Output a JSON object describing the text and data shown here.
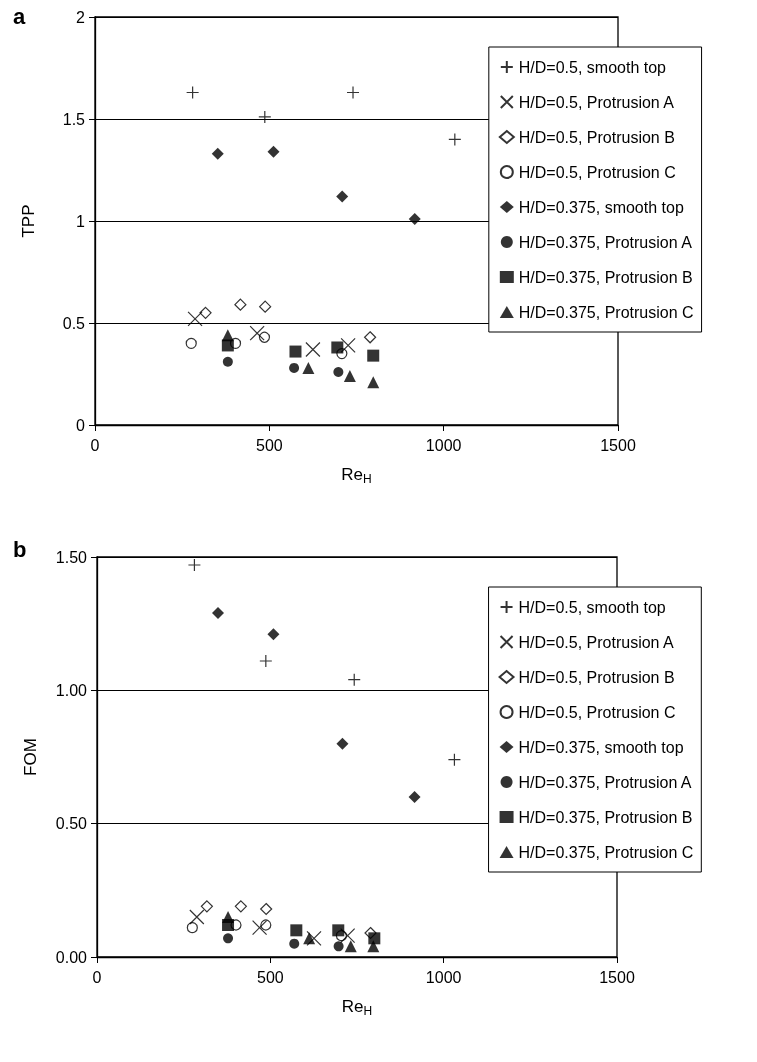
{
  "chart_data": [
    {
      "type": "scatter",
      "title": "a",
      "xlabel": "Re$_{H}$",
      "ylabel": "TPP",
      "xlim": [
        0,
        1500
      ],
      "xticks": [
        0,
        500,
        1000,
        1500
      ],
      "ylim": [
        0,
        2
      ],
      "yticks": [
        0,
        0.5,
        1,
        1.5,
        2
      ],
      "grid": "y",
      "legend": "right",
      "series": [
        {
          "name": "H/D=0.5, smooth top",
          "color": "#000000",
          "marker": "plus",
          "x": [
            280,
            487,
            740,
            1032
          ],
          "values": [
            1.63,
            1.51,
            1.63,
            1.4
          ]
        },
        {
          "name": "H/D=0.5, Protrusion A",
          "color": "#000000",
          "marker": "cross",
          "x": [
            287,
            465,
            625,
            726
          ],
          "values": [
            0.52,
            0.45,
            0.37,
            0.39
          ]
        },
        {
          "name": "H/D=0.5, Protrusion B",
          "color": "#000000",
          "marker": "diamond-open",
          "x": [
            317,
            417,
            488,
            789
          ],
          "values": [
            0.55,
            0.59,
            0.58,
            0.43
          ]
        },
        {
          "name": "H/D=0.5, Protrusion C",
          "color": "#000000",
          "marker": "circle-open",
          "x": [
            276,
            403,
            486,
            708
          ],
          "values": [
            0.4,
            0.4,
            0.43,
            0.35
          ]
        },
        {
          "name": "H/D=0.375, smooth top",
          "color": "#000000",
          "marker": "diamond",
          "x": [
            352,
            512,
            709,
            917
          ],
          "values": [
            1.33,
            1.34,
            1.12,
            1.01
          ]
        },
        {
          "name": "H/D=0.375, Protrusion A",
          "color": "#000000",
          "marker": "circle",
          "x": [
            381,
            571,
            698
          ],
          "values": [
            0.31,
            0.28,
            0.26
          ]
        },
        {
          "name": "H/D=0.375, Protrusion B",
          "color": "#000000",
          "marker": "square",
          "x": [
            381,
            575,
            695,
            798
          ],
          "values": [
            0.39,
            0.36,
            0.38,
            0.34
          ]
        },
        {
          "name": "H/D=0.375, Protrusion C",
          "color": "#000000",
          "marker": "triangle",
          "x": [
            381,
            612,
            731,
            798
          ],
          "values": [
            0.44,
            0.28,
            0.24,
            0.21
          ]
        }
      ]
    },
    {
      "type": "scatter",
      "title": "b",
      "xlabel": "Re$_{H}$",
      "ylabel": "FOM",
      "xlim": [
        0,
        1500
      ],
      "xticks": [
        0,
        500,
        1000,
        1500
      ],
      "ylim": [
        0,
        1.5
      ],
      "yticks": [
        {
          "value": 0,
          "label": "0.00"
        },
        {
          "value": 0.5,
          "label": "0.50"
        },
        {
          "value": 1,
          "label": "1.00"
        },
        {
          "value": 1.5,
          "label": "1.50"
        }
      ],
      "grid": "y",
      "legend": "right",
      "series": [
        {
          "name": "H/D=0.5, smooth top",
          "color": "#000000",
          "marker": "plus",
          "x": [
            281,
            487,
            742,
            1031
          ],
          "values": [
            1.47,
            1.11,
            1.04,
            0.74
          ]
        },
        {
          "name": "H/D=0.5, Protrusion A",
          "color": "#000000",
          "marker": "cross",
          "x": [
            288,
            469,
            626,
            723
          ],
          "values": [
            0.15,
            0.11,
            0.07,
            0.08
          ]
        },
        {
          "name": "H/D=0.5, Protrusion B",
          "color": "#000000",
          "marker": "diamond-open",
          "x": [
            317,
            415,
            488,
            789
          ],
          "values": [
            0.19,
            0.19,
            0.18,
            0.09
          ]
        },
        {
          "name": "H/D=0.5, Protrusion C",
          "color": "#000000",
          "marker": "circle-open",
          "x": [
            275,
            401,
            487,
            705
          ],
          "values": [
            0.11,
            0.12,
            0.12,
            0.08
          ]
        },
        {
          "name": "H/D=0.375, smooth top",
          "color": "#000000",
          "marker": "diamond",
          "x": [
            349,
            509,
            708,
            916
          ],
          "values": [
            1.29,
            1.21,
            0.8,
            0.6
          ]
        },
        {
          "name": "H/D=0.375, Protrusion A",
          "color": "#000000",
          "marker": "circle",
          "x": [
            378,
            569,
            697
          ],
          "values": [
            0.07,
            0.05,
            0.04
          ]
        },
        {
          "name": "H/D=0.375, Protrusion B",
          "color": "#000000",
          "marker": "square",
          "x": [
            378,
            575,
            696,
            800
          ],
          "values": [
            0.12,
            0.1,
            0.1,
            0.07
          ]
        },
        {
          "name": "H/D=0.375, Protrusion C",
          "color": "#000000",
          "marker": "triangle",
          "x": [
            378,
            612,
            732,
            797
          ],
          "values": [
            0.15,
            0.07,
            0.04,
            0.04
          ]
        }
      ]
    }
  ]
}
